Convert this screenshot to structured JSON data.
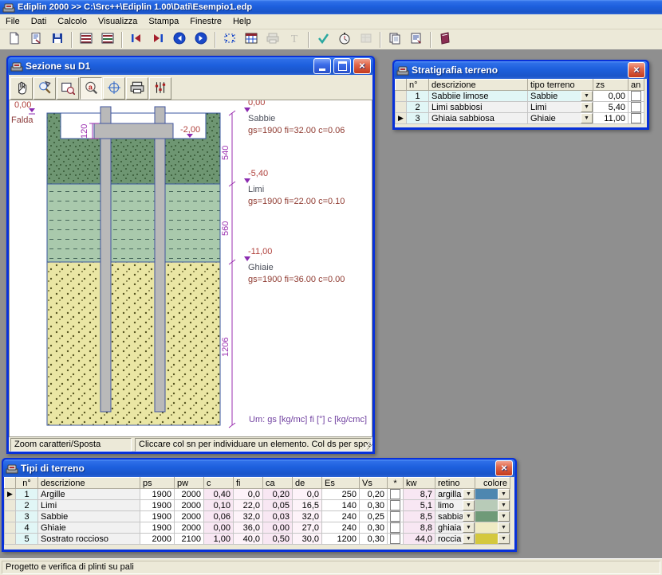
{
  "main": {
    "title": "Ediplin 2000 >> C:\\Src++\\Ediplin 1.00\\Dati\\Esempio1.edp"
  },
  "menu": {
    "items": [
      "File",
      "Dati",
      "Calcolo",
      "Visualizza",
      "Stampa",
      "Finestre",
      "Help"
    ]
  },
  "toolbar": {
    "groups": [
      [
        "new-document",
        "open-document",
        "save"
      ],
      [
        "stratigraphy-table",
        "soil-types-table"
      ],
      [
        "first-record",
        "last-record",
        "previous",
        "next"
      ],
      [
        "section-view",
        "data-grid",
        "printer",
        "text-style"
      ],
      [
        "calculate-check",
        "run-analysis",
        "results-grid"
      ],
      [
        "copy",
        "report"
      ],
      [
        "help-book"
      ]
    ],
    "disabled": [
      "printer",
      "text-style",
      "results-grid"
    ]
  },
  "statusbar": {
    "text": "Progetto e verifica di plinti su pali"
  },
  "sezione": {
    "title": "Sezione su D1",
    "tools": [
      "pan-hand",
      "zoom-dynamic",
      "zoom-window",
      "zoom-characters",
      "center-view",
      "print-section",
      "display-filters"
    ],
    "pressed_tool": "zoom-characters",
    "status_left": "Zoom caratteri/Sposta",
    "status_right": "Cliccare col sn per individuare un elemento. Col ds per spostare il di:",
    "drawing": {
      "left_level": "0,00",
      "falda": "Falda",
      "plinth_level": "-2,00",
      "plinth_dim": "120",
      "layers": [
        {
          "level": "0,00",
          "name": "Sabbie",
          "props": "gs=1900  fi=32.00  c=0.06",
          "dim": "540",
          "color": "#6E9672"
        },
        {
          "level": "-5,40",
          "name": "Limi",
          "props": "gs=1900  fi=22.00  c=0.10",
          "dim": "560",
          "color": "#A9C9AC"
        },
        {
          "level": "-11,00",
          "name": "Ghiaie",
          "props": "gs=1900  fi=36.00  c=0.00",
          "dim": "1206",
          "color": "#EAE6A4"
        }
      ],
      "units": "Um: gs [kg/mc]  fi [°]  c [kg/cmc]"
    }
  },
  "stratigrafia": {
    "title": "Stratigrafia terreno",
    "columns": [
      "n°",
      "descrizione",
      "tipo terreno",
      "zs",
      "an"
    ],
    "active_row": 3,
    "rows": [
      {
        "n": "1",
        "descrizione": "Sabbiie limose",
        "tipo": "Sabbie",
        "zs": "0,00",
        "an": false
      },
      {
        "n": "2",
        "descrizione": "Limi sabbiosi",
        "tipo": "Limi",
        "zs": "5,40",
        "an": false
      },
      {
        "n": "3",
        "descrizione": "Ghiaia sabbiosa",
        "tipo": "Ghiaie",
        "zs": "11,00",
        "an": false
      }
    ]
  },
  "tipi": {
    "title": "Tipi di terreno",
    "columns": [
      "n°",
      "descrizione",
      "ps",
      "pw",
      "c",
      "fi",
      "ca",
      "de",
      "Es",
      "Vs",
      "*",
      "kw",
      "retino",
      "colore"
    ],
    "active_row": 1,
    "rows": [
      {
        "n": "1",
        "descrizione": "Argille",
        "ps": "1900",
        "pw": "2000",
        "c": "0,40",
        "fi": "0,0",
        "ca": "0,20",
        "de": "0,0",
        "Es": "250",
        "Vs": "0,20",
        "star": false,
        "kw": "8,7",
        "retino": "argilla",
        "colore": "#4E87B0"
      },
      {
        "n": "2",
        "descrizione": "Limi",
        "ps": "1900",
        "pw": "2000",
        "c": "0,10",
        "fi": "22,0",
        "ca": "0,05",
        "de": "16,5",
        "Es": "140",
        "Vs": "0,30",
        "star": false,
        "kw": "5,1",
        "retino": "limo",
        "colore": "#B8CBB8"
      },
      {
        "n": "3",
        "descrizione": "Sabbie",
        "ps": "1900",
        "pw": "2000",
        "c": "0,06",
        "fi": "32,0",
        "ca": "0,03",
        "de": "32,0",
        "Es": "240",
        "Vs": "0,25",
        "star": false,
        "kw": "8,5",
        "retino": "sabbia",
        "colore": "#6F9A78"
      },
      {
        "n": "4",
        "descrizione": "Ghiaie",
        "ps": "1900",
        "pw": "2000",
        "c": "0,00",
        "fi": "36,0",
        "ca": "0,00",
        "de": "27,0",
        "Es": "240",
        "Vs": "0,30",
        "star": false,
        "kw": "8,8",
        "retino": "ghiaia",
        "colore": "#EFEBC4"
      },
      {
        "n": "5",
        "descrizione": "Sostrato roccioso",
        "ps": "2000",
        "pw": "2100",
        "c": "1,00",
        "fi": "40,0",
        "ca": "0,50",
        "de": "30,0",
        "Es": "1200",
        "Vs": "0,30",
        "star": false,
        "kw": "44,0",
        "retino": "roccia",
        "colore": "#D4C83E"
      }
    ]
  }
}
